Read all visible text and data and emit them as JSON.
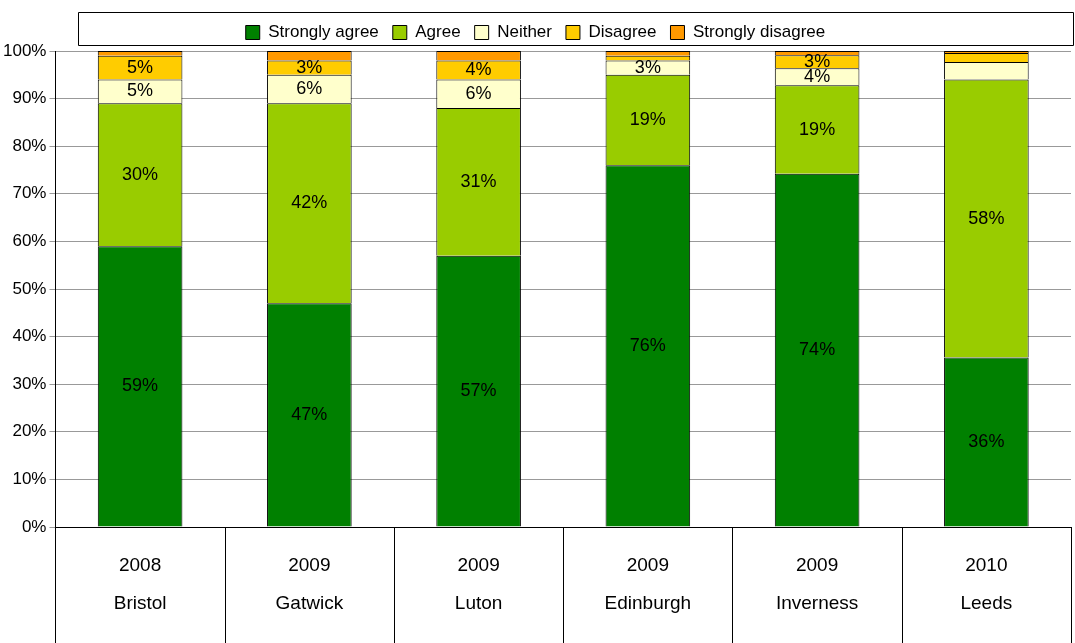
{
  "chart_data": {
    "type": "bar",
    "stacked": true,
    "categories": [
      "2008\nBristol",
      "2009\nGatwick",
      "2009\nLuton",
      "2009\nEdinburgh",
      "2009\nInverness",
      "2010\nLeeds"
    ],
    "series": [
      {
        "name": "Strongly agree",
        "color": "#008000",
        "values": [
          59,
          47,
          57,
          76,
          74.2,
          35.6
        ],
        "value_labels": [
          "59%",
          "47%",
          "57%",
          "76%",
          "74%",
          "36%"
        ]
      },
      {
        "name": "Agree",
        "color": "#99cc00",
        "values": [
          30,
          42,
          31,
          19,
          18.6,
          58.4
        ],
        "value_labels": [
          "30%",
          "42%",
          "31%",
          "19%",
          "19%",
          "58%"
        ]
      },
      {
        "name": "Neither",
        "color": "#ffffcc",
        "values": [
          5,
          6,
          6,
          3,
          3.6,
          3.7
        ],
        "value_labels": [
          "5%",
          "6%",
          "6%",
          "3%",
          "4%",
          null
        ]
      },
      {
        "name": "Disagree",
        "color": "#ffcc00",
        "values": [
          5,
          3,
          4,
          1,
          2.7,
          1.9
        ],
        "value_labels": [
          "5%",
          "3%",
          "4%",
          null,
          "3%",
          null
        ]
      },
      {
        "name": "Strongly disagree",
        "color": "#ff9900",
        "values": [
          1,
          2,
          2,
          1,
          0.9,
          0.4
        ]
      }
    ],
    "ylim": [
      0,
      100
    ],
    "yticks": [
      {
        "value": 0,
        "label": "0%"
      },
      {
        "value": 10,
        "label": "10%"
      },
      {
        "value": 20,
        "label": "20%"
      },
      {
        "value": 30,
        "label": "30%"
      },
      {
        "value": 40,
        "label": "40%"
      },
      {
        "value": 50,
        "label": "50%"
      },
      {
        "value": 60,
        "label": "60%"
      },
      {
        "value": 70,
        "label": "70%"
      },
      {
        "value": 80,
        "label": "80%"
      },
      {
        "value": 90,
        "label": "90%"
      },
      {
        "value": 100,
        "label": "100%"
      }
    ],
    "grid": "y",
    "legend": "top"
  }
}
